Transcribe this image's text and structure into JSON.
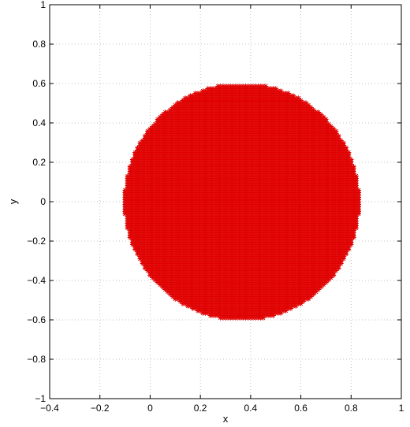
{
  "chart_data": {
    "type": "scatter",
    "title": "",
    "xlabel": "x",
    "ylabel": "y",
    "xlim": [
      -0.4,
      1
    ],
    "ylim": [
      -1,
      1
    ],
    "x_ticks": [
      -0.4,
      -0.2,
      0,
      0.2,
      0.4,
      0.6,
      0.8,
      1
    ],
    "y_ticks": [
      -1,
      -0.8,
      -0.6,
      -0.4,
      -0.2,
      0,
      0.2,
      0.4,
      0.6,
      0.8,
      1
    ],
    "x_tick_labels": [
      "−0.4",
      "−0.2",
      "0",
      "0.2",
      "0.4",
      "0.6",
      "0.8",
      "1"
    ],
    "y_tick_labels": [
      "−1",
      "−0.8",
      "−0.6",
      "−0.4",
      "−0.2",
      "0",
      "0.2",
      "0.4",
      "0.6",
      "0.8",
      "1"
    ],
    "grid": true,
    "legend": "none",
    "marker_color": "#e00000",
    "marker": "asterisk",
    "series": [
      {
        "region": "disc",
        "center": [
          0.365,
          0.0
        ],
        "radius": 0.6,
        "x_range": [
          -0.1,
          0.83
        ],
        "y_range": [
          -0.59,
          0.59
        ],
        "x_step": 0.01,
        "y_step": 0.012
      }
    ]
  }
}
